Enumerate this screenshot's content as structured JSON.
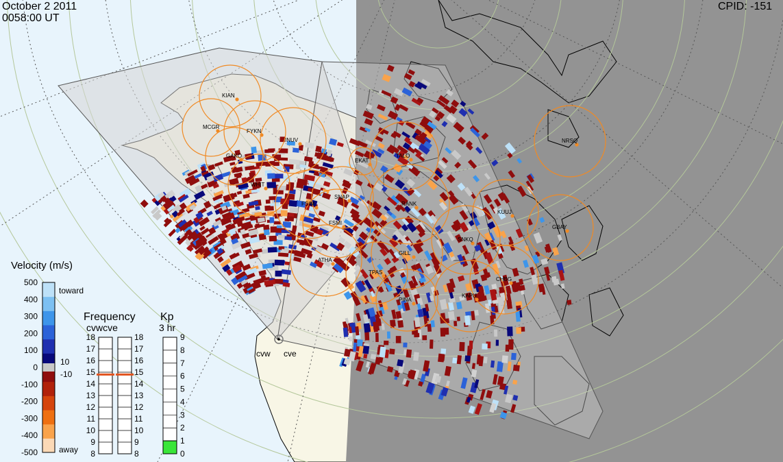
{
  "header": {
    "date": "October  2 2011",
    "time": "0058:00 UT",
    "cpid": "CPID:  -151"
  },
  "colors": {
    "ocean": "#e8f4fc",
    "land": "#f8f6e6",
    "night": "#939393",
    "fov": "#d6d6d6",
    "station_circle": "#f08a24",
    "grid": "#b4c79a",
    "kp_fill": "#39e639",
    "freq_marker": "#e2531e"
  },
  "stations": [
    {
      "name": "KIAN"
    },
    {
      "name": "MCGR"
    },
    {
      "name": "FYKN"
    },
    {
      "name": "INUV"
    },
    {
      "name": "GAKO"
    },
    {
      "name": "WHIT"
    },
    {
      "name": "FSIM"
    },
    {
      "name": "SNAP"
    },
    {
      "name": "FSMI"
    },
    {
      "name": "ATHA"
    },
    {
      "name": "TPAS"
    },
    {
      "name": "GILL"
    },
    {
      "name": "RANK"
    },
    {
      "name": "TALO"
    },
    {
      "name": "KUUJ"
    },
    {
      "name": "GBAY"
    },
    {
      "name": "NRSQ"
    },
    {
      "name": "PINA"
    },
    {
      "name": "KAPU"
    },
    {
      "name": "CHBG"
    },
    {
      "name": "SNKQ"
    },
    {
      "name": "EKAT"
    }
  ],
  "radars": [
    {
      "name": "cvw"
    },
    {
      "name": "cve"
    }
  ],
  "velocity_legend": {
    "title": "Velocity (m/s)",
    "ticks": [
      "500",
      "400",
      "300",
      "200",
      "100",
      "0",
      "-100",
      "-200",
      "-300",
      "-400",
      "-500"
    ],
    "toward_label": "toward",
    "away_label": "away",
    "pos_threshold": "10",
    "neg_threshold": "-10",
    "palette": [
      "#fbd9b6",
      "#f9a34b",
      "#ee7011",
      "#d5450d",
      "#b1220b",
      "#8f0d0d",
      "#08087a",
      "#1f2fb0",
      "#2b62d8",
      "#3d95ea",
      "#7cc0f2",
      "#bde1f8"
    ]
  },
  "frequency_legend": {
    "title": "Frequency",
    "radars_label": "cvwcve",
    "ticks": [
      "18",
      "17",
      "16",
      "15",
      "14",
      "13",
      "12",
      "11",
      "10",
      "9",
      "8"
    ],
    "cvw_mhz": 14.8,
    "cve_mhz": 14.8
  },
  "kp_legend": {
    "title": "Kp",
    "subtitle": "3 hr",
    "ticks": [
      "9",
      "8",
      "7",
      "6",
      "5",
      "4",
      "3",
      "2",
      "1",
      "0"
    ],
    "value": 1
  }
}
